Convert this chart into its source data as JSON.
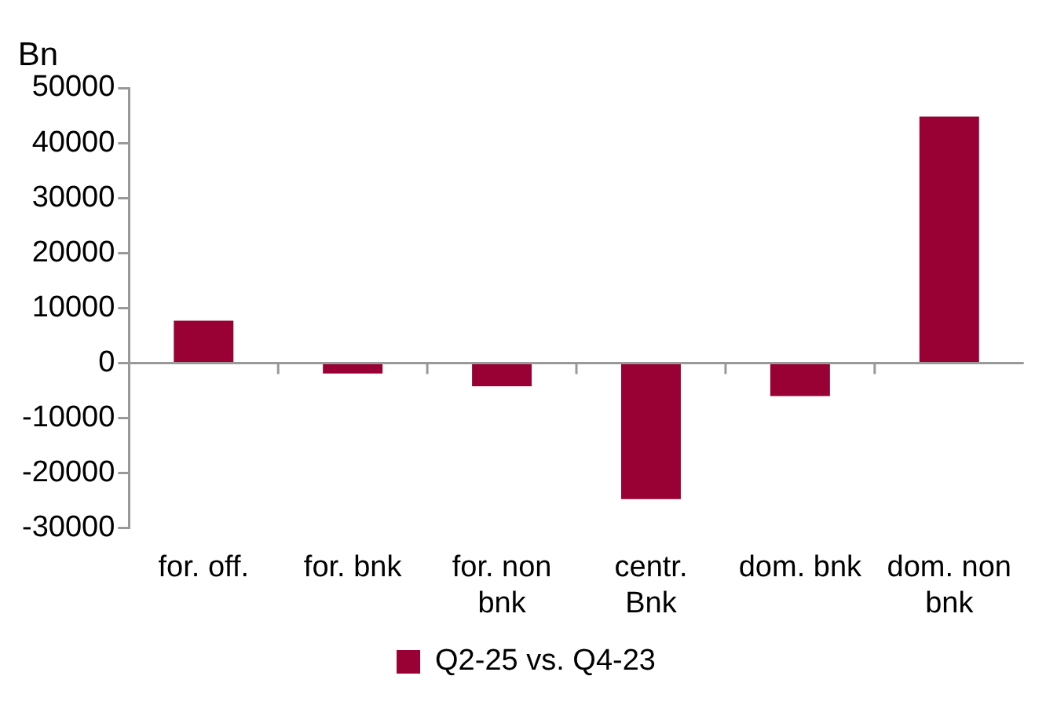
{
  "chart_data": {
    "type": "bar",
    "ylabel": "Bn",
    "categories": [
      "for. off.",
      "for. bnk",
      "for. non bnk",
      "centr. Bnk",
      "dom. bnk",
      "dom. non bnk"
    ],
    "series": [
      {
        "name": "Q2-25 vs. Q4-23",
        "color": "#990033",
        "values": [
          7700,
          -1900,
          -4200,
          -24700,
          -6000,
          44800
        ]
      }
    ],
    "ylim": [
      -30000,
      50000
    ],
    "yticks": [
      -30000,
      -20000,
      -10000,
      0,
      10000,
      20000,
      30000,
      40000,
      50000
    ],
    "legend": "bottom"
  }
}
